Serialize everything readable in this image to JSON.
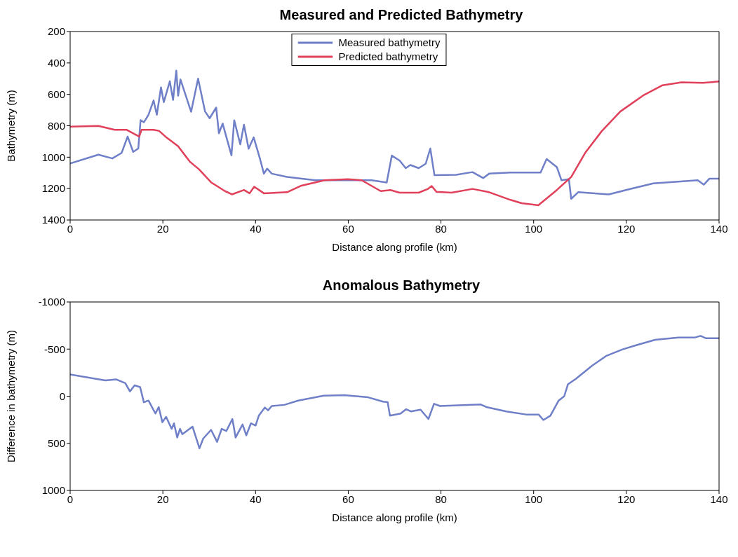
{
  "chart_data": [
    {
      "type": "line",
      "title": "Measured and Predicted Bathymetry",
      "xlabel": "Distance along profile (km)",
      "ylabel": "Bathymetry (m)",
      "xlim": [
        0,
        140
      ],
      "xticks": [
        0,
        20,
        40,
        60,
        80,
        100,
        120,
        140
      ],
      "ylim": [
        1400,
        200
      ],
      "yticks": [
        200,
        400,
        600,
        800,
        1000,
        1200,
        1400
      ],
      "legend": "top",
      "series": [
        {
          "name": "Measured bathymetry",
          "color": "#6f7fc8",
          "x": [
            0,
            6.1,
            9.1,
            11.1,
            12.4,
            13.6,
            14.7,
            15.2,
            15.9,
            16.9,
            18,
            18.7,
            19.6,
            20.2,
            21.5,
            22.2,
            22.9,
            23.3,
            23.8,
            26.1,
            27.6,
            29.1,
            30.1,
            31.5,
            32.1,
            32.9,
            34.8,
            35.4,
            36.7,
            37.5,
            38.5,
            39.6,
            41,
            41.8,
            42.5,
            43.5,
            46.8,
            52.9,
            65,
            68.3,
            69.4,
            71.1,
            72.4,
            73.4,
            75.2,
            76.7,
            77.7,
            78.6,
            83.3,
            86.8,
            89.1,
            90.4,
            95,
            101.5,
            102.8,
            105,
            106,
            107.6,
            108.1,
            109.6,
            116.2,
            120.2,
            125.8,
            135.4,
            136.7,
            137.9,
            140
          ],
          "values": [
            1040,
            984,
            1008,
            973,
            869,
            966,
            945,
            764,
            778,
            730,
            639,
            730,
            556,
            650,
            517,
            635,
            449,
            609,
            505,
            711,
            500,
            709,
            752,
            684,
            848,
            786,
            988,
            765,
            918,
            793,
            946,
            874,
            1015,
            1105,
            1073,
            1105,
            1126,
            1147,
            1147,
            1161,
            990,
            1022,
            1070,
            1050,
            1070,
            1042,
            945,
            1115,
            1112,
            1095,
            1133,
            1105,
            1098,
            1098,
            1012,
            1063,
            1147,
            1140,
            1265,
            1223,
            1237,
            1207,
            1167,
            1147,
            1175,
            1137,
            1137
          ]
        },
        {
          "name": "Predicted bathymetry",
          "color": "#e0405a",
          "x": [
            0,
            6.1,
            9.6,
            12.2,
            14.9,
            15.4,
            18,
            19.2,
            20.8,
            23.3,
            25.8,
            27.8,
            30.4,
            33.4,
            34.9,
            37.5,
            38.7,
            39.7,
            41.8,
            46.8,
            49.9,
            54.9,
            59.9,
            62.9,
            67,
            69.1,
            71.1,
            75.2,
            77.2,
            78,
            79,
            82.3,
            86.8,
            90.4,
            95,
            97.4,
            101,
            105,
            108.1,
            111.1,
            114.7,
            118.7,
            123.8,
            127.8,
            131.9,
            136.5,
            140
          ],
          "values": [
            806,
            801,
            826,
            826,
            869,
            826,
            826,
            833,
            875,
            931,
            1028,
            1077,
            1160,
            1216,
            1237,
            1209,
            1230,
            1188,
            1230,
            1223,
            1181,
            1147,
            1140,
            1147,
            1216,
            1209,
            1226,
            1226,
            1202,
            1184,
            1220,
            1226,
            1202,
            1223,
            1272,
            1293,
            1306,
            1209,
            1126,
            973,
            834,
            709,
            604,
            542,
            523,
            527,
            518
          ]
        }
      ]
    },
    {
      "type": "line",
      "title": "Anomalous Bathymetry",
      "xlabel": "Distance along profile (km)",
      "ylabel": "Difference in bathymetry (m)",
      "xlim": [
        0,
        140
      ],
      "xticks": [
        0,
        20,
        40,
        60,
        80,
        100,
        120,
        140
      ],
      "ylim": [
        1000,
        -1000
      ],
      "yticks": [
        -1000,
        -500,
        0,
        500,
        1000
      ],
      "series": [
        {
          "color": "#6f7fc8",
          "x": [
            0,
            7.6,
            9.9,
            11.9,
            12.9,
            13.9,
            15.1,
            15.9,
            16.9,
            18.4,
            19.1,
            19.9,
            20.7,
            21.9,
            22.4,
            23.1,
            23.7,
            24.2,
            26.4,
            27.9,
            28.7,
            30.4,
            31.7,
            32.7,
            33.7,
            35,
            35.7,
            37.2,
            38,
            39,
            40,
            40.7,
            42,
            42.7,
            43.5,
            46.2,
            49.2,
            54.7,
            59.2,
            64.3,
            67.5,
            68.5,
            69,
            71.3,
            72.5,
            73.5,
            75.6,
            77.3,
            78.5,
            79.8,
            88.6,
            89.8,
            94.1,
            98.6,
            101.1,
            102.1,
            103.6,
            105.4,
            106.6,
            107.4,
            109.1,
            112.6,
            115.6,
            119.1,
            122.1,
            126.2,
            131.2,
            134.7,
            136,
            137.2,
            140
          ],
          "values": [
            -230,
            -168,
            -179,
            -138,
            -51,
            -115,
            -97,
            64,
            46,
            184,
            115,
            276,
            219,
            346,
            288,
            438,
            346,
            403,
            323,
            553,
            450,
            357,
            484,
            346,
            369,
            242,
            438,
            300,
            415,
            288,
            311,
            207,
            120,
            150,
            104,
            92,
            46,
            -5,
            -12,
            12,
            58,
            64,
            207,
            184,
            138,
            161,
            143,
            242,
            81,
            104,
            88,
            115,
            161,
            196,
            196,
            253,
            207,
            46,
            0,
            -127,
            -184,
            -323,
            -426,
            -495,
            -541,
            -599,
            -622,
            -622,
            -640,
            -615,
            -615
          ]
        }
      ]
    }
  ]
}
